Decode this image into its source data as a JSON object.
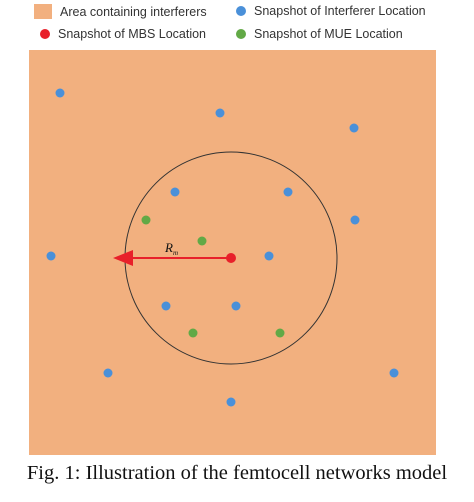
{
  "legend": {
    "area_label": "Area containing interferers",
    "interferer_label": "Snapshot of Interferer Location",
    "mbs_label": "Snapshot of MBS Location",
    "mue_label": "Snapshot of MUE Location"
  },
  "diagram": {
    "radius_label": "R",
    "radius_subscript": "m"
  },
  "caption": "Fig. 1: Illustration of the femtocell networks model",
  "colors": {
    "area": "#f2b07f",
    "interferer": "#4a90d9",
    "mbs": "#e8202a",
    "mue": "#62a946",
    "arrow": "#e8202a"
  }
}
